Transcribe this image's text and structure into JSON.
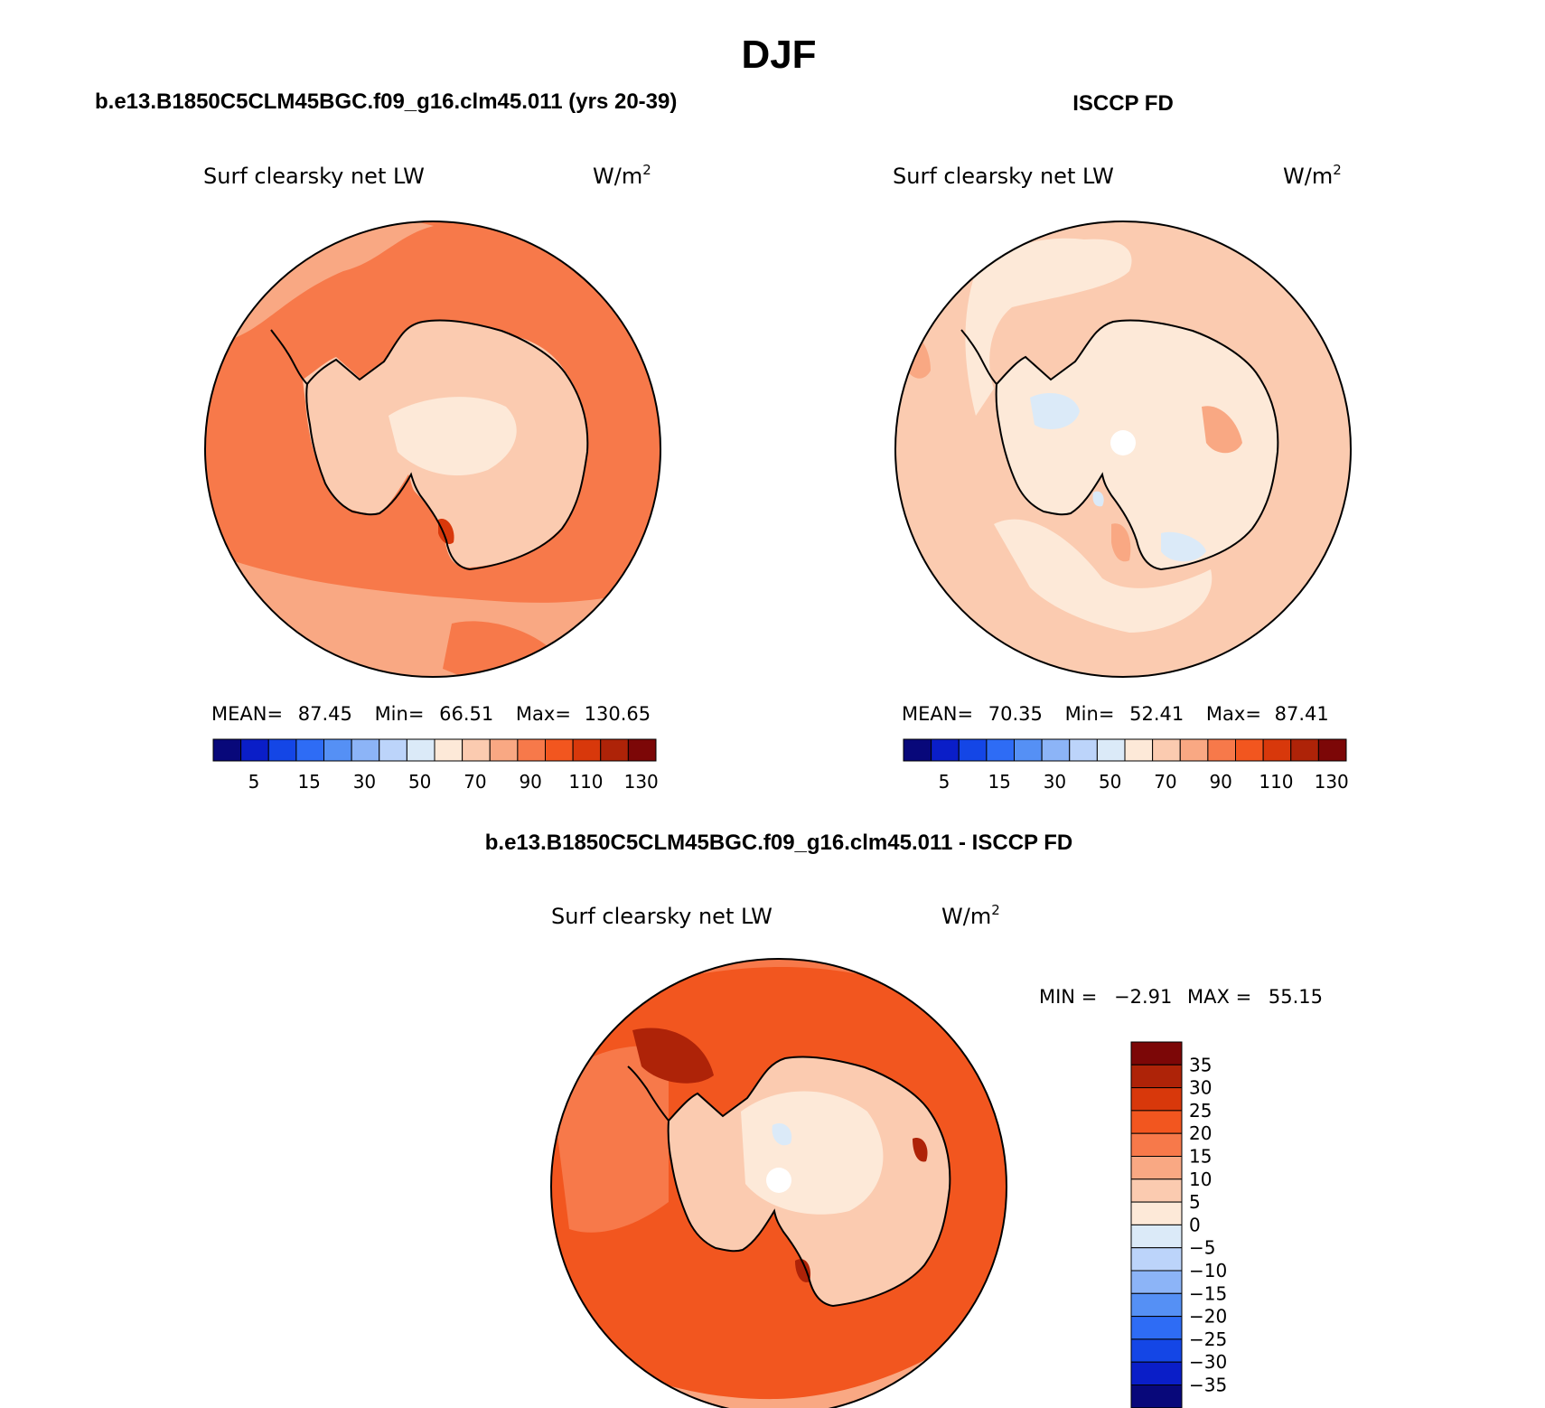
{
  "figure": {
    "season": "DJF",
    "panel_left_title": "b.e13.B1850C5CLM45BGC.f09_g16.clm45.011 (yrs 20-39)",
    "panel_right_title": "ISCCP FD",
    "panel_diff_title": "b.e13.B1850C5CLM45BGC.f09_g16.clm45.011 - ISCCP FD"
  },
  "panels": {
    "left": {
      "variable": "Surf clearsky net LW",
      "units": "W/m",
      "units_sup": "2",
      "stats": {
        "mean_label": "MEAN=",
        "mean": "87.45",
        "min_label": "Min=",
        "min": "66.51",
        "max_label": "Max=",
        "max": "130.65"
      }
    },
    "right": {
      "variable": "Surf clearsky net LW",
      "units": "W/m",
      "units_sup": "2",
      "stats": {
        "mean_label": "MEAN=",
        "mean": "70.35",
        "min_label": "Min=",
        "min": "52.41",
        "max_label": "Max=",
        "max": "87.41"
      }
    },
    "diff": {
      "variable": "Surf clearsky net LW",
      "units": "W/m",
      "units_sup": "2",
      "stats": {
        "min_label": "MIN =",
        "min": "−2.91",
        "max_label": "MAX =",
        "max": "55.15"
      }
    }
  },
  "colorbars": {
    "field": {
      "colors": [
        "#08087a",
        "#0a1ec8",
        "#1446e6",
        "#2e6cf5",
        "#5590f5",
        "#8cb4f7",
        "#bcd4fa",
        "#dbeaf8",
        "#fde9d8",
        "#fbcbb0",
        "#f9a883",
        "#f7794a",
        "#f2561f",
        "#d8380b",
        "#ae2308",
        "#7c0707"
      ],
      "tick_labels": [
        "5",
        "15",
        "30",
        "50",
        "70",
        "90",
        "110",
        "130"
      ]
    },
    "diff": {
      "colors": [
        "#7c0707",
        "#ae2308",
        "#d8380b",
        "#f2561f",
        "#f7794a",
        "#f9a883",
        "#fbcbb0",
        "#fde9d8",
        "#dbeaf8",
        "#bcd4fa",
        "#8cb4f7",
        "#5590f5",
        "#2e6cf5",
        "#1446e6",
        "#0a1ec8",
        "#08087a"
      ],
      "tick_labels": [
        "35",
        "30",
        "25",
        "20",
        "15",
        "10",
        "5",
        "0",
        "−5",
        "−10",
        "−15",
        "−20",
        "−25",
        "−30",
        "−35"
      ]
    }
  },
  "map_colors": {
    "left_ocean": "#f7794a",
    "left_ocean_light": "#f9a883",
    "left_land": "#fbcbb0",
    "left_land_light": "#fde9d8",
    "left_hot": "#d8380b",
    "right_ocean": "#fbcbb0",
    "right_light": "#fde9d8",
    "right_cool": "#dbeaf8",
    "right_mid": "#f9a883",
    "diff_ocean": "#f2561f",
    "diff_ocean_light": "#f7794a",
    "diff_ring": "#f9a883",
    "diff_land": "#fbcbb0",
    "diff_land_light": "#fde9d8",
    "diff_cool": "#dbeaf8",
    "diff_hot": "#ae2308"
  }
}
